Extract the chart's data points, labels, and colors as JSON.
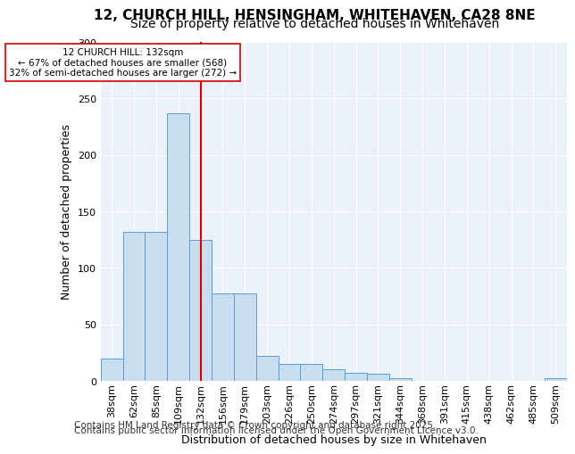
{
  "title1": "12, CHURCH HILL, HENSINGHAM, WHITEHAVEN, CA28 8NE",
  "title2": "Size of property relative to detached houses in Whitehaven",
  "xlabel": "Distribution of detached houses by size in Whitehaven",
  "ylabel": "Number of detached properties",
  "bar_values": [
    20,
    132,
    132,
    237,
    125,
    77,
    77,
    22,
    15,
    15,
    10,
    7,
    6,
    2,
    0,
    0,
    0,
    0,
    0,
    0,
    2
  ],
  "categories": [
    "38sqm",
    "62sqm",
    "85sqm",
    "109sqm",
    "132sqm",
    "156sqm",
    "179sqm",
    "203sqm",
    "226sqm",
    "250sqm",
    "274sqm",
    "297sqm",
    "321sqm",
    "344sqm",
    "368sqm",
    "391sqm",
    "415sqm",
    "438sqm",
    "462sqm",
    "485sqm",
    "509sqm"
  ],
  "bar_color": "#c9ddf0",
  "bar_edge_color": "#5a9fd4",
  "vline_x": 4,
  "vline_color": "#cc0000",
  "annotation_text": "12 CHURCH HILL: 132sqm\n← 67% of detached houses are smaller (568)\n32% of semi-detached houses are larger (272) →",
  "annotation_box_color": "#ffffff",
  "annotation_box_edge": "#cc0000",
  "ylim": [
    0,
    300
  ],
  "yticks": [
    0,
    50,
    100,
    150,
    200,
    250,
    300
  ],
  "background_color": "#eaf1f8",
  "footer1": "Contains HM Land Registry data © Crown copyright and database right 2025.",
  "footer2": "Contains public sector information licensed under the Open Government Licence v3.0.",
  "title1_fontsize": 11,
  "title2_fontsize": 10,
  "axis_fontsize": 9,
  "tick_fontsize": 8,
  "footer_fontsize": 7.5
}
